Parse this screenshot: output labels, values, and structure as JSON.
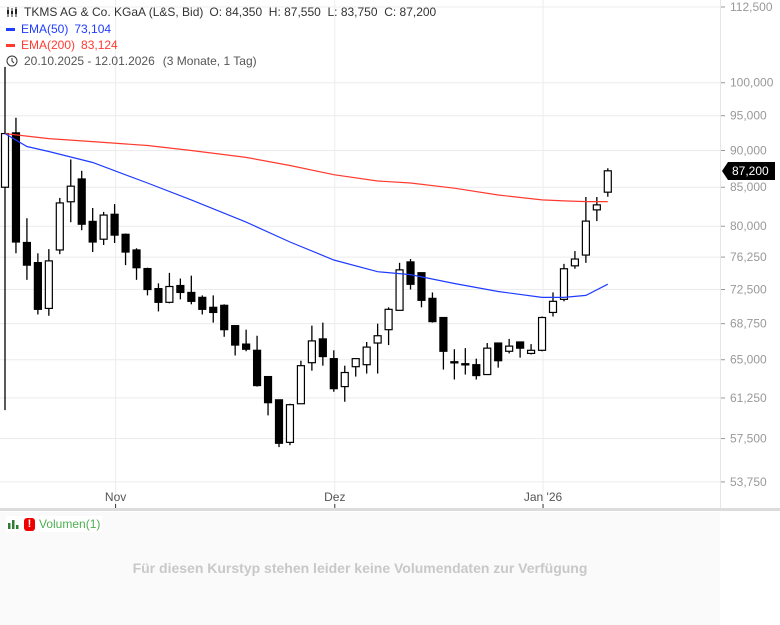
{
  "header": {
    "title": "TKMS AG & Co. KGaA (L&S, Bid)",
    "ohlc": "O: 84,350  H: 87,550  L: 83,750  C: 87,200",
    "ema50_label": "EMA(50)",
    "ema50_value": "73,104",
    "ema200_label": "EMA(200)",
    "ema200_value": "83,124",
    "range": "20.10.2025 - 12.01.2026",
    "range_note": "(3 Monate, 1 Tag)",
    "last_price_tag": "87,200"
  },
  "volume_pane": {
    "label": "Volumen(1)",
    "message": "Für diesen Kurstyp stehen leider keine Volumendaten zur Verfügung"
  },
  "colors": {
    "ema50": "#1f3cff",
    "ema200": "#ff3b30",
    "candle": "#000000",
    "volume_label": "#4caf50",
    "warning": "#e00000"
  },
  "icons": {
    "chart_type": "candlestick-icon",
    "time": "clock-icon",
    "volume": "bar-chart-icon",
    "warning": "exclamation-icon"
  },
  "chart_data": {
    "type": "candlestick",
    "yscale": "log",
    "ylim": [
      52500,
      114000
    ],
    "y_ticks": [
      "112,500",
      "100,000",
      "95,000",
      "90,000",
      "85,000",
      "80,000",
      "76,250",
      "72,500",
      "68,750",
      "65,000",
      "61,250",
      "57,500",
      "53,750"
    ],
    "y_tick_values": [
      112500,
      100000,
      95000,
      90000,
      85000,
      80000,
      76250,
      72500,
      68750,
      65000,
      61250,
      57500,
      53750
    ],
    "x_ticks": [
      {
        "label": "Nov",
        "candle": 11
      },
      {
        "label": "Dez",
        "candle": 31
      },
      {
        "label": "Jan '26",
        "candle": 50
      }
    ],
    "grid": true,
    "ohlc": [
      [
        85000,
        102500,
        60100,
        92400
      ],
      [
        92500,
        94700,
        76700,
        78060
      ],
      [
        78000,
        81000,
        73600,
        75300
      ],
      [
        75600,
        76700,
        69740,
        70300
      ],
      [
        70400,
        77200,
        69600,
        75800
      ],
      [
        77100,
        83600,
        76600,
        82950
      ],
      [
        83100,
        88750,
        80500,
        85140
      ],
      [
        86100,
        87200,
        79500,
        80250
      ],
      [
        80600,
        82300,
        76850,
        78060
      ],
      [
        78400,
        81800,
        77700,
        81400
      ],
      [
        81500,
        82800,
        77940,
        78900
      ],
      [
        79000,
        79100,
        75300,
        76850
      ],
      [
        77100,
        77300,
        73600,
        75000
      ],
      [
        74900,
        75000,
        71840,
        72500
      ],
      [
        72600,
        73200,
        70070,
        71070
      ],
      [
        71070,
        74400,
        70960,
        72840
      ],
      [
        72950,
        73750,
        71400,
        72170
      ],
      [
        72170,
        74080,
        70850,
        71180
      ],
      [
        71620,
        71840,
        69740,
        70300
      ],
      [
        70520,
        71840,
        68860,
        69960
      ],
      [
        70740,
        70850,
        67360,
        68110
      ],
      [
        68540,
        68540,
        65430,
        66500
      ],
      [
        66600,
        68110,
        65860,
        66070
      ],
      [
        65960,
        67470,
        62340,
        62440
      ],
      [
        63320,
        63320,
        59610,
        60800
      ],
      [
        61070,
        61070,
        56740,
        57080
      ],
      [
        57160,
        60700,
        56910,
        60610
      ],
      [
        60700,
        64900,
        60700,
        64400
      ],
      [
        64700,
        68540,
        63900,
        66930
      ],
      [
        67140,
        68860,
        64400,
        65320
      ],
      [
        65110,
        65960,
        61840,
        62140
      ],
      [
        62340,
        64400,
        60890,
        63720
      ],
      [
        64300,
        65110,
        63320,
        65110
      ],
      [
        64500,
        66820,
        63620,
        66290
      ],
      [
        66710,
        68750,
        63620,
        67470
      ],
      [
        68110,
        70520,
        66500,
        70300
      ],
      [
        70190,
        75570,
        70190,
        74750
      ],
      [
        75680,
        76020,
        72500,
        73090
      ],
      [
        74420,
        74420,
        70520,
        71290
      ],
      [
        71510,
        72170,
        68860,
        68970
      ],
      [
        69410,
        69410,
        64010,
        65860
      ],
      [
        64800,
        66070,
        63030,
        64700
      ],
      [
        64600,
        66180,
        63520,
        64500
      ],
      [
        64500,
        65110,
        63030,
        63420
      ],
      [
        63520,
        66710,
        63520,
        66180
      ],
      [
        66710,
        66710,
        64200,
        64900
      ],
      [
        65860,
        67140,
        65640,
        66390
      ],
      [
        66820,
        66820,
        65210,
        66180
      ],
      [
        65640,
        66600,
        65530,
        65960
      ],
      [
        65960,
        69520,
        65860,
        69410
      ],
      [
        69960,
        72170,
        69520,
        71180
      ],
      [
        71400,
        75450,
        71180,
        74880
      ],
      [
        75220,
        76970,
        74880,
        76020
      ],
      [
        76490,
        83720,
        75570,
        80640
      ],
      [
        82060,
        83720,
        80640,
        82700
      ],
      [
        84350,
        87550,
        83750,
        87200
      ]
    ],
    "ema50": [
      [
        1,
        92400
      ],
      [
        3,
        90560
      ],
      [
        5,
        89860
      ],
      [
        9,
        88330
      ],
      [
        14,
        85560
      ],
      [
        18,
        83340
      ],
      [
        23,
        80510
      ],
      [
        27,
        78060
      ],
      [
        31,
        75910
      ],
      [
        35,
        74540
      ],
      [
        38,
        74200
      ],
      [
        42,
        73180
      ],
      [
        46,
        72280
      ],
      [
        50,
        71620
      ],
      [
        52,
        71620
      ],
      [
        54,
        71840
      ],
      [
        56,
        73104
      ]
    ],
    "ema200": [
      [
        1,
        92400
      ],
      [
        5,
        91680
      ],
      [
        9,
        91250
      ],
      [
        14,
        90700
      ],
      [
        18,
        90000
      ],
      [
        23,
        89030
      ],
      [
        27,
        87920
      ],
      [
        31,
        86670
      ],
      [
        35,
        85830
      ],
      [
        38,
        85560
      ],
      [
        42,
        84870
      ],
      [
        46,
        83980
      ],
      [
        50,
        83340
      ],
      [
        52,
        83210
      ],
      [
        54,
        83124
      ],
      [
        56,
        83124
      ]
    ]
  }
}
